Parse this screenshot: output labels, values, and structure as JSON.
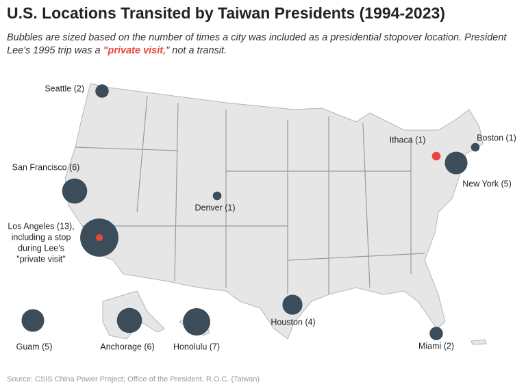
{
  "header": {
    "title": "U.S. Locations Transited by Taiwan Presidents (1994-2023)",
    "subtitle": [
      "Bubbles are sized based on the number of times a city was included as a presidential stopover location. President Lee's 1995 trip was a ",
      "\"private visit",
      ",\" not a transit."
    ]
  },
  "map": {
    "bubble_color": "#3b4d5a",
    "highlight_color": "#e8453c",
    "cities": [
      {
        "label_lines": [
          "Seattle (2)"
        ],
        "count": 2
      },
      {
        "label_lines": [
          "San Francisco (6)"
        ],
        "count": 6
      },
      {
        "label_lines": [
          "Los Angeles (13),",
          "including a stop",
          "during Lee's",
          "\"private visit\""
        ],
        "count": 13
      },
      {
        "label_lines": [
          "Denver (1)"
        ],
        "count": 1
      },
      {
        "label_lines": [
          "Ithaca (1)"
        ],
        "count": 1,
        "highlight": true
      },
      {
        "label_lines": [
          "Boston (1)"
        ],
        "count": 1
      },
      {
        "label_lines": [
          "New York (5)"
        ],
        "count": 5
      },
      {
        "label_lines": [
          "Houston (4)"
        ],
        "count": 4
      },
      {
        "label_lines": [
          "Miami (2)"
        ],
        "count": 2
      },
      {
        "label_lines": [
          "Guam (5)"
        ],
        "count": 5
      },
      {
        "label_lines": [
          "Anchorage (6)"
        ],
        "count": 6
      },
      {
        "label_lines": [
          "Honolulu (7)"
        ],
        "count": 7
      }
    ]
  },
  "footer": {
    "source": "Source: CSIS China Power Project; Office of the President, R.O.C. (Taiwan)"
  }
}
